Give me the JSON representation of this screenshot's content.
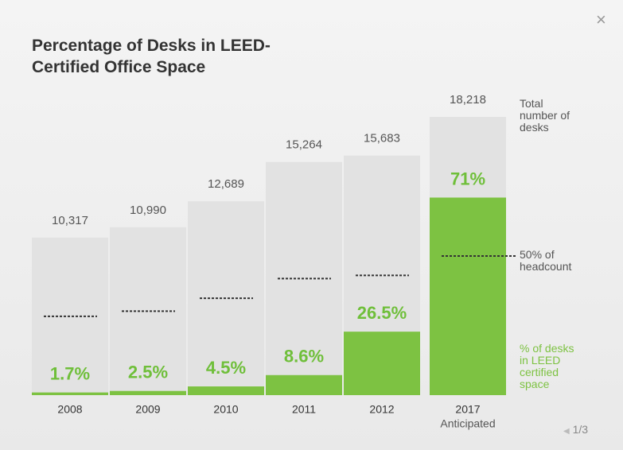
{
  "chart_data": {
    "type": "bar",
    "title": "Percentage of Desks in LEED-Certified Office Space",
    "categories": [
      "2008",
      "2009",
      "2010",
      "2011",
      "2012",
      "2017"
    ],
    "category_sublabels": [
      null,
      null,
      null,
      null,
      null,
      "Anticipated"
    ],
    "series": [
      {
        "name": "Total number of desks",
        "color": "#e2e2e2",
        "values": [
          10317,
          10990,
          12689,
          15264,
          15683,
          18218
        ],
        "value_labels": [
          "10,317",
          "10,990",
          "12,689",
          "15,264",
          "15,683",
          "18,218"
        ]
      },
      {
        "name": "% of desks in LEED certified space",
        "color": "#7dc242",
        "values": [
          1.7,
          2.5,
          4.5,
          8.6,
          26.5,
          71
        ],
        "value_labels": [
          "1.7%",
          "2.5%",
          "4.5%",
          "8.6%",
          "26.5%",
          "71%"
        ]
      }
    ],
    "reference": {
      "label": "50% of headcount",
      "value": 50
    }
  },
  "pagination": "1/3"
}
